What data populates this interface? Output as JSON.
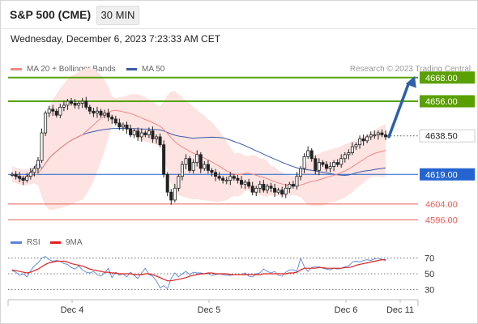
{
  "header": {
    "symbol": "S&P 500 (CME)",
    "timeframe": "30 MIN",
    "datetime": "Wednesday, December 6, 2023 7:23:33 AM CET"
  },
  "legend": {
    "ma20_label": "MA 20 + Bollinger Bands",
    "ma50_label": "MA 50",
    "credit": "Research © 2023 Trading Central"
  },
  "rsi_legend": {
    "rsi_label": "RSI",
    "ma9_label": "9MA"
  },
  "colors": {
    "green_level": "#5aa000",
    "blue_level": "#2464d0",
    "red_level": "#e8605a",
    "candle": "#222222",
    "bollinger_fill": "#fde3e1",
    "ma20": "#ef8a86",
    "ma50": "#3a5aa8",
    "arrow": "#2e5fa8",
    "rsi": "#5a86d6",
    "rsi_ma": "#e02020"
  },
  "chart_data": [
    {
      "type": "candlestick",
      "ylim": [
        4590,
        4672
      ],
      "x_labels": [
        "Dec 4",
        "Dec 5",
        "Dec 6",
        "Dec 11"
      ],
      "levels": [
        {
          "value": 4668.0,
          "label": "4668.00",
          "kind": "resistance"
        },
        {
          "value": 4656.0,
          "label": "4656.00",
          "kind": "resistance"
        },
        {
          "value": 4638.5,
          "label": "4638.50",
          "kind": "last"
        },
        {
          "value": 4619.0,
          "label": "4619.00",
          "kind": "pivot"
        },
        {
          "value": 4604.0,
          "label": "4604.00",
          "kind": "support"
        },
        {
          "value": 4596.0,
          "label": "4596.00",
          "kind": "support"
        }
      ],
      "close": [
        4619,
        4618,
        4617,
        4616,
        4618,
        4620,
        4622,
        4626,
        4640,
        4650,
        4652,
        4651,
        4649,
        4653,
        4654,
        4656,
        4655,
        4654,
        4655,
        4656,
        4653,
        4651,
        4650,
        4651,
        4649,
        4650,
        4648,
        4647,
        4645,
        4643,
        4644,
        4642,
        4639,
        4641,
        4638,
        4640,
        4639,
        4641,
        4637,
        4638,
        4634,
        4619,
        4610,
        4606,
        4612,
        4618,
        4624,
        4627,
        4621,
        4625,
        4629,
        4622,
        4624,
        4621,
        4620,
        4618,
        4617,
        4616,
        4616,
        4618,
        4617,
        4616,
        4614,
        4615,
        4613,
        4610,
        4612,
        4614,
        4611,
        4613,
        4612,
        4610,
        4611,
        4609,
        4612,
        4614,
        4613,
        4618,
        4622,
        4628,
        4631,
        4627,
        4621,
        4625,
        4624,
        4622,
        4623,
        4625,
        4624,
        4627,
        4629,
        4630,
        4633,
        4634,
        4637,
        4636,
        4638,
        4639,
        4639,
        4640,
        4639,
        4638
      ]
    },
    {
      "type": "line",
      "title": "RSI",
      "ylim": [
        20,
        80
      ],
      "y_ticks": [
        70,
        50,
        30
      ],
      "series": [
        {
          "name": "RSI",
          "values": [
            54,
            52,
            48,
            50,
            46,
            54,
            60,
            64,
            70,
            72,
            68,
            66,
            67,
            66,
            63,
            62,
            58,
            56,
            60,
            55,
            52,
            51,
            53,
            49,
            47,
            51,
            57,
            45,
            52,
            48,
            50,
            46,
            52,
            48,
            44,
            51,
            57,
            49,
            47,
            41,
            32,
            35,
            31,
            44,
            51,
            46,
            50,
            53,
            49,
            52,
            51,
            51,
            50,
            50,
            48,
            49,
            50,
            49,
            48,
            48,
            49,
            49,
            49,
            51,
            47,
            46,
            50,
            51,
            56,
            53,
            51,
            53,
            48,
            47,
            52,
            55,
            55,
            53,
            70,
            59,
            53,
            58,
            59,
            59,
            57,
            56,
            55,
            57,
            56,
            57,
            59,
            60,
            65,
            66,
            65,
            67,
            68,
            67,
            69,
            70,
            68,
            67
          ]
        },
        {
          "name": "9MA",
          "values": [
            55,
            54,
            53,
            52,
            51,
            52,
            54,
            56,
            59,
            62,
            64,
            65,
            66,
            66,
            66,
            65,
            63,
            62,
            61,
            60,
            58,
            56,
            55,
            54,
            53,
            52,
            52,
            51,
            51,
            50,
            50,
            50,
            50,
            49,
            49,
            49,
            50,
            50,
            49,
            47,
            45,
            43,
            41,
            41,
            42,
            43,
            44,
            45,
            47,
            48,
            49,
            50,
            50,
            51,
            51,
            50,
            50,
            50,
            50,
            49,
            49,
            49,
            49,
            49,
            49,
            49,
            49,
            49,
            50,
            50,
            50,
            50,
            50,
            50,
            50,
            51,
            51,
            52,
            55,
            57,
            57,
            57,
            57,
            58,
            58,
            57,
            57,
            57,
            57,
            57,
            58,
            58,
            59,
            61,
            62,
            63,
            64,
            65,
            66,
            67,
            68,
            68
          ]
        }
      ]
    }
  ]
}
